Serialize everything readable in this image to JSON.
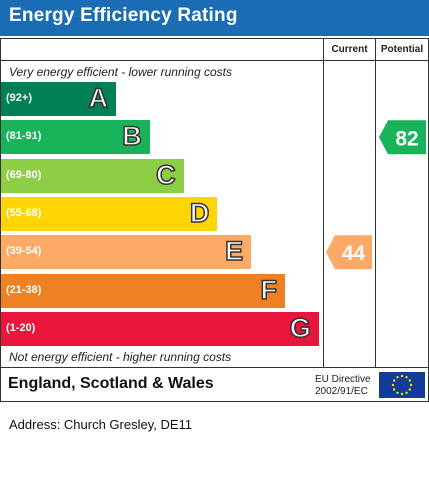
{
  "header": {
    "title": "Energy Efficiency Rating"
  },
  "columns": {
    "current": "Current",
    "potential": "Potential"
  },
  "notes": {
    "top": "Very energy efficient - lower running costs",
    "bottom": "Not energy efficient - higher running costs"
  },
  "chart_data": {
    "type": "bar",
    "bands": [
      {
        "range": "(92+)",
        "letter": "A",
        "color": "#008054"
      },
      {
        "range": "(81-91)",
        "letter": "B",
        "color": "#19b459"
      },
      {
        "range": "(69-80)",
        "letter": "C",
        "color": "#8dce46"
      },
      {
        "range": "(55-68)",
        "letter": "D",
        "color": "#ffd500"
      },
      {
        "range": "(39-54)",
        "letter": "E",
        "color": "#fcaa65"
      },
      {
        "range": "(21-38)",
        "letter": "F",
        "color": "#ef8023"
      },
      {
        "range": "(1-20)",
        "letter": "G",
        "color": "#e9153b"
      }
    ],
    "current": {
      "value": "44",
      "band": "E",
      "color": "#fcaa65"
    },
    "potential": {
      "value": "82",
      "band": "B",
      "color": "#19b459"
    }
  },
  "footer": {
    "country": "England, Scotland & Wales",
    "directive_line1": "EU Directive",
    "directive_line2": "2002/91/EC",
    "flag_icon": "eu-flag-icon"
  },
  "address": "Address: Church Gresley, DE11"
}
